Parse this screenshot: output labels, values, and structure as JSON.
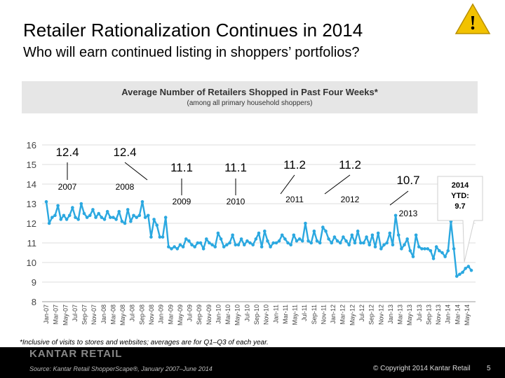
{
  "slide": {
    "title": "Retailer Rationalization Continues in 2014",
    "subtitle": "Who will earn continued listing in shoppers’ portfolios?",
    "footnote": "*Inclusive of visits to stores and websites; averages are for Q1–Q3 of each year.",
    "brand": "KANTAR RETAIL",
    "source": "Source: Kantar Retail ShopperScape®, January 2007–June 2014",
    "copyright": "© Copyright 2014 Kantar Retail",
    "page_number": "5",
    "warning_symbol": "!"
  },
  "colors": {
    "line": "#2ba8e0",
    "warning_fill": "#f2c200",
    "footer_bg": "#000000"
  },
  "chart_data": {
    "type": "line",
    "title": "Average Number of Retailers Shopped in Past Four Weeks*",
    "subtitle": "(among all primary household shoppers)",
    "ylim": [
      8,
      16
    ],
    "yticks": [
      "8",
      "9",
      "10",
      "11",
      "12",
      "13",
      "14",
      "15",
      "16"
    ],
    "xtick_labels": [
      "Jan-07",
      "Mar-07",
      "May-07",
      "Jul-07",
      "Sep-07",
      "Nov-07",
      "Jan-08",
      "Mar-08",
      "May-08",
      "Jul-08",
      "Sep-08",
      "Nov-08",
      "Jan-09",
      "Mar-09",
      "May-09",
      "Jul-09",
      "Sep-09",
      "Nov-09",
      "Jan-10",
      "Mar-10",
      "May-10",
      "Jul-10",
      "Sep-10",
      "Nov-10",
      "Jan-11",
      "Mar-11",
      "May-11",
      "Jul-11",
      "Sep-11",
      "Nov-11",
      "Jan-12",
      "Mar-12",
      "May-12",
      "Jul-12",
      "Sep-12",
      "Nov-12",
      "Jan-13",
      "Mar-13",
      "May-13",
      "Jul-13",
      "Sep-13",
      "Nov-13",
      "Jan-14",
      "Mar-14",
      "May-14"
    ],
    "series": [
      {
        "values": [
          13.1,
          12.0,
          12.3,
          12.4,
          12.9,
          12.2,
          12.4,
          12.2,
          12.4,
          12.8,
          12.3,
          12.2,
          13.0,
          12.5,
          12.3,
          12.4,
          12.7,
          12.3,
          12.5,
          12.3,
          12.2,
          12.6,
          12.3,
          12.3,
          12.2,
          12.6,
          12.1,
          12.0,
          12.7,
          12.1,
          12.4,
          12.3,
          12.4,
          13.1,
          12.3,
          12.4,
          11.3,
          12.2,
          11.9,
          11.3,
          11.3,
          12.3,
          10.8,
          10.7,
          10.8,
          10.7,
          10.9,
          10.8,
          11.2,
          11.1,
          10.9,
          10.8,
          11.0,
          11.0,
          10.7,
          11.2,
          11.0,
          10.9,
          10.8,
          11.5,
          11.2,
          10.8,
          10.9,
          11.0,
          11.4,
          10.9,
          10.9,
          11.2,
          10.9,
          11.1,
          11.0,
          10.9,
          11.2,
          11.5,
          10.8,
          11.6,
          11.1,
          10.8,
          11.0,
          11.0,
          11.1,
          11.4,
          11.2,
          11.0,
          10.9,
          11.4,
          11.1,
          11.2,
          11.1,
          12.0,
          11.1,
          11.0,
          11.6,
          11.1,
          11.0,
          11.8,
          11.6,
          11.2,
          11.0,
          11.3,
          11.1,
          11.0,
          11.3,
          11.1,
          10.9,
          11.4,
          11.0,
          11.6,
          11.0,
          11.0,
          11.3,
          10.9,
          11.4,
          10.8,
          11.5,
          10.7,
          10.9,
          11.0,
          11.5,
          10.9,
          12.4,
          11.4,
          10.7,
          10.9,
          11.2,
          10.6,
          10.3,
          11.4,
          10.8,
          10.7,
          10.7,
          10.7,
          10.6,
          10.2,
          10.8,
          10.6,
          10.5,
          10.3,
          10.6,
          12.1,
          10.7,
          9.3,
          9.4,
          9.5,
          9.7,
          9.8,
          9.6
        ]
      }
    ],
    "callouts": [
      {
        "value": "12.4",
        "year": "2007"
      },
      {
        "value": "12.4",
        "year": "2008"
      },
      {
        "value": "11.1",
        "year": "2009"
      },
      {
        "value": "11.1",
        "year": "2010"
      },
      {
        "value": "11.2",
        "year": "2011"
      },
      {
        "value": "11.2",
        "year": "2012"
      },
      {
        "value": "10.7",
        "year": "2013"
      }
    ],
    "ytd_callout": {
      "line1": "2014",
      "line2": "YTD:",
      "line3": "9.7"
    }
  }
}
